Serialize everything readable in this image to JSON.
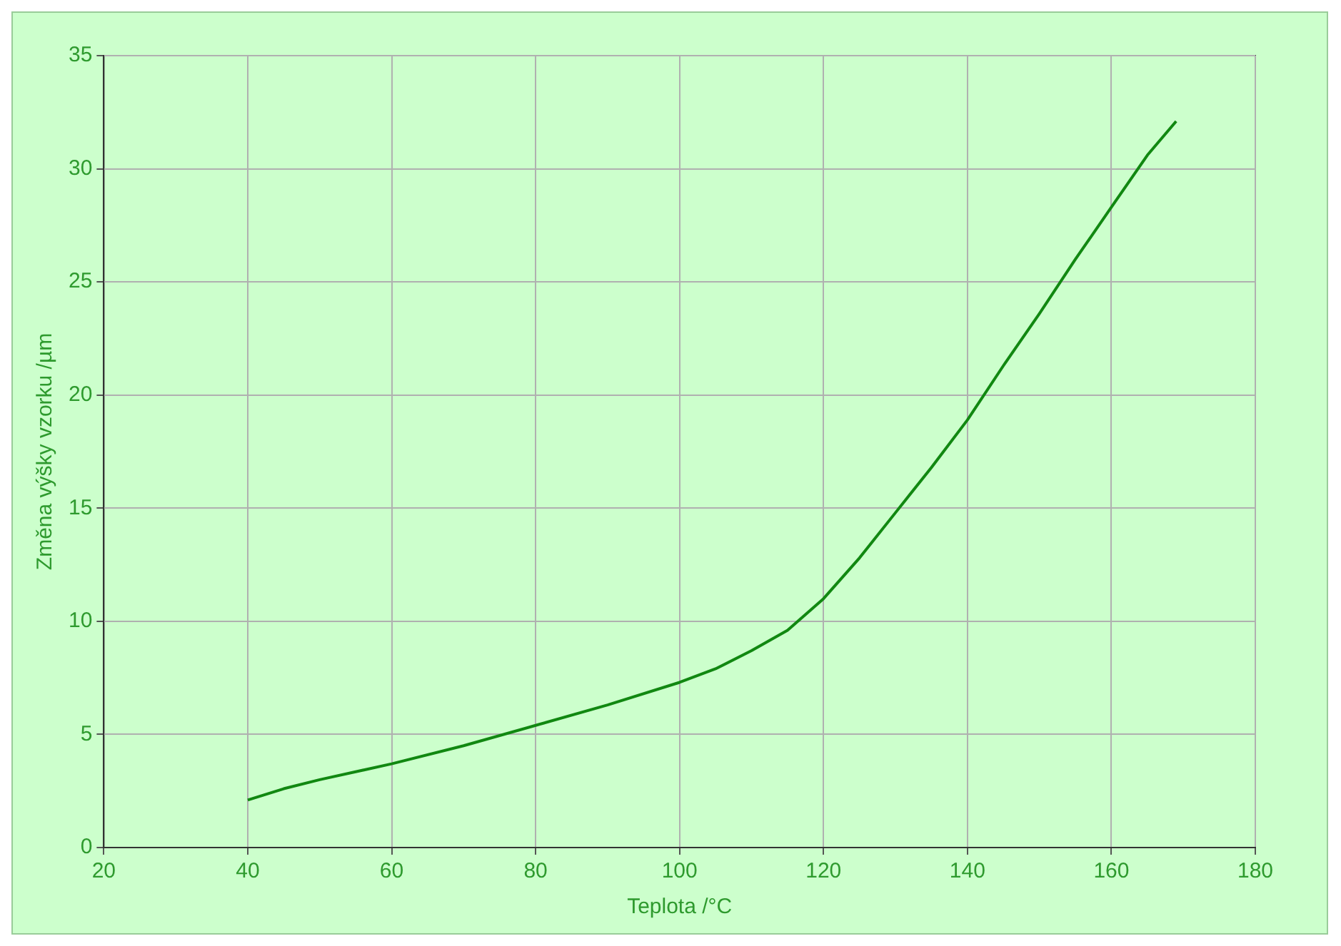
{
  "chart_data": {
    "type": "line",
    "xlabel": "Teplota /°C",
    "ylabel": "Změna výšky vzorku /µm",
    "x": [
      40,
      45,
      50,
      60,
      70,
      80,
      90,
      100,
      105,
      110,
      115,
      120,
      125,
      130,
      135,
      140,
      145,
      150,
      155,
      160,
      165,
      169
    ],
    "series": [
      {
        "color": "#118811",
        "values": [
          2.1,
          2.6,
          3.0,
          3.7,
          4.5,
          5.4,
          6.3,
          7.3,
          7.9,
          8.7,
          9.6,
          11.0,
          12.8,
          14.8,
          16.8,
          18.9,
          21.3,
          23.6,
          26.0,
          28.3,
          30.6,
          32.1
        ]
      }
    ],
    "xlim": [
      20,
      180
    ],
    "xticks": [
      20,
      40,
      60,
      80,
      100,
      120,
      140,
      160,
      180
    ],
    "ylim": [
      0,
      35
    ],
    "yticks": [
      0,
      5,
      10,
      15,
      20,
      25,
      30,
      35
    ],
    "grid": true,
    "legend": false,
    "marker": "none",
    "line_style": "solid"
  }
}
